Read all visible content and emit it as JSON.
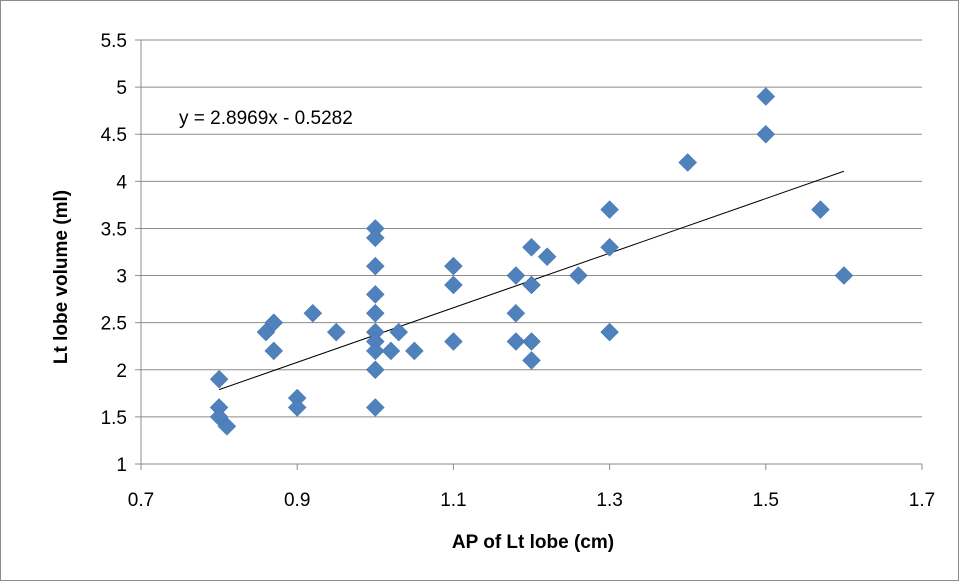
{
  "chart_data": {
    "type": "scatter",
    "xlabel": "AP of Lt lobe (cm)",
    "ylabel": "Lt lobe volume (ml)",
    "xlim": [
      0.7,
      1.7
    ],
    "ylim": [
      1,
      5.5
    ],
    "x_ticks": [
      "0.7",
      "0.9",
      "1.1",
      "1.3",
      "1.5",
      "1.7"
    ],
    "y_ticks": [
      "1",
      "1.5",
      "2",
      "2.5",
      "3",
      "3.5",
      "4",
      "4.5",
      "5",
      "5.5"
    ],
    "grid": "horizontal",
    "marker": "diamond",
    "marker_color": "#4f81bd",
    "trendline": {
      "slope": 2.8969,
      "intercept": -0.5282,
      "x_range": [
        0.8,
        1.6
      ],
      "equation": "y = 2.8969x - 0.5282",
      "color": "#000000"
    },
    "series": [
      {
        "points": [
          [
            0.8,
            1.9
          ],
          [
            0.8,
            1.6
          ],
          [
            0.8,
            1.5
          ],
          [
            0.81,
            1.4
          ],
          [
            0.86,
            2.4
          ],
          [
            0.87,
            2.5
          ],
          [
            0.87,
            2.2
          ],
          [
            0.9,
            1.7
          ],
          [
            0.9,
            1.6
          ],
          [
            0.92,
            2.6
          ],
          [
            0.95,
            2.4
          ],
          [
            1.0,
            3.5
          ],
          [
            1.0,
            3.4
          ],
          [
            1.0,
            3.1
          ],
          [
            1.0,
            2.8
          ],
          [
            1.0,
            2.6
          ],
          [
            1.0,
            2.4
          ],
          [
            1.0,
            2.3
          ],
          [
            1.0,
            2.2
          ],
          [
            1.0,
            2.0
          ],
          [
            1.0,
            1.6
          ],
          [
            1.02,
            2.2
          ],
          [
            1.03,
            2.4
          ],
          [
            1.05,
            2.2
          ],
          [
            1.1,
            3.1
          ],
          [
            1.1,
            2.9
          ],
          [
            1.1,
            2.3
          ],
          [
            1.18,
            3.0
          ],
          [
            1.18,
            2.6
          ],
          [
            1.18,
            2.3
          ],
          [
            1.2,
            3.3
          ],
          [
            1.2,
            2.9
          ],
          [
            1.2,
            2.3
          ],
          [
            1.2,
            2.1
          ],
          [
            1.22,
            3.2
          ],
          [
            1.26,
            3.0
          ],
          [
            1.3,
            3.7
          ],
          [
            1.3,
            3.3
          ],
          [
            1.3,
            2.4
          ],
          [
            1.4,
            4.2
          ],
          [
            1.5,
            4.9
          ],
          [
            1.5,
            4.5
          ],
          [
            1.57,
            3.7
          ],
          [
            1.6,
            3.0
          ]
        ]
      }
    ]
  }
}
